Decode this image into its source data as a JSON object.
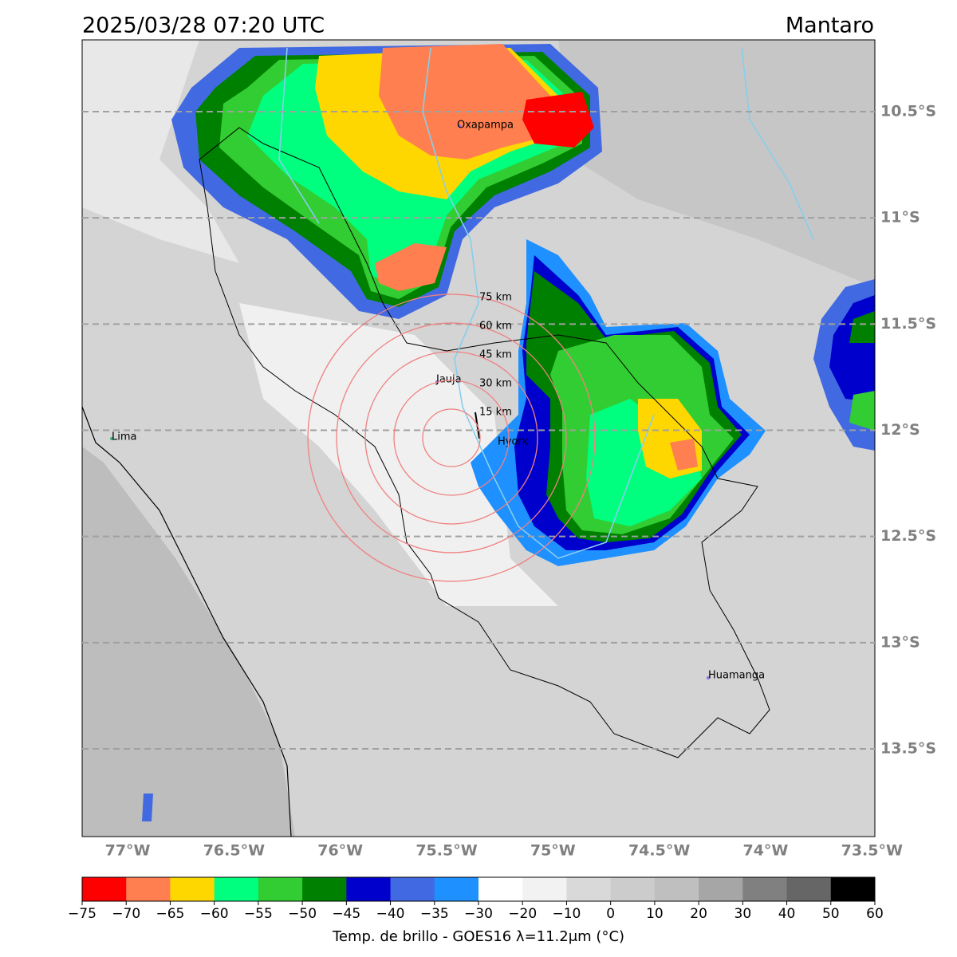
{
  "header": {
    "title": "2025/03/28 07:20 UTC",
    "region": "Mantaro"
  },
  "map": {
    "xlim": [
      -77.214,
      -73.486
    ],
    "ylim": [
      -13.913,
      -10.162
    ],
    "xticks": [
      {
        "value": -77,
        "label": "77°W"
      },
      {
        "value": -76.5,
        "label": "76.5°W"
      },
      {
        "value": -76,
        "label": "76°W"
      },
      {
        "value": -75.5,
        "label": "75.5°W"
      },
      {
        "value": -75,
        "label": "75°W"
      },
      {
        "value": -74.5,
        "label": "74.5°W"
      },
      {
        "value": -74,
        "label": "74°W"
      },
      {
        "value": -73.5,
        "label": "73.5°W"
      }
    ],
    "yticks": [
      {
        "value": -10.5,
        "label": "10.5°S"
      },
      {
        "value": -11,
        "label": "11°S"
      },
      {
        "value": -11.5,
        "label": "11.5°S"
      },
      {
        "value": -12,
        "label": "12°S"
      },
      {
        "value": -12.5,
        "label": "12.5°S"
      },
      {
        "value": -13,
        "label": "13°S"
      },
      {
        "value": -13.5,
        "label": "13.5°S"
      }
    ],
    "rings": [
      {
        "value": 15,
        "label": "15 km"
      },
      {
        "value": 30,
        "label": "30 km"
      },
      {
        "value": 45,
        "label": "45 km"
      },
      {
        "value": 60,
        "label": "60 km"
      },
      {
        "value": 75,
        "label": "75 km"
      }
    ],
    "cities": [
      "Oxapampa",
      "Jauja",
      "Lima",
      "Hyork",
      "Huamanga"
    ]
  },
  "colorbar": {
    "label": "Temp. de brillo - GOES16 λ=11.2μm (°C)",
    "ticks": [
      {
        "value": -75,
        "label": "−75"
      },
      {
        "value": -70,
        "label": "−70"
      },
      {
        "value": -65,
        "label": "−65"
      },
      {
        "value": -60,
        "label": "−60"
      },
      {
        "value": -55,
        "label": "−55"
      },
      {
        "value": -50,
        "label": "−50"
      },
      {
        "value": -45,
        "label": "−45"
      },
      {
        "value": -40,
        "label": "−40"
      },
      {
        "value": -35,
        "label": "−35"
      },
      {
        "value": -30,
        "label": "−30"
      },
      {
        "value": -20,
        "label": "−20"
      },
      {
        "value": -10,
        "label": "−10"
      },
      0,
      10,
      20,
      30,
      40,
      50,
      60
    ],
    "colors": [
      "#ff0000",
      "#ff7f50",
      "#ffd700",
      "#00ff7f",
      "#32cd32",
      "#008000",
      "#0000cd",
      "#4169e1",
      "#1e90ff",
      "#ffffff",
      "#f2f2f2",
      "#d9d9d9",
      "#cccccc",
      "#bfbfbf",
      "#a6a6a6",
      "#808080",
      "#666666",
      "#000000"
    ]
  }
}
